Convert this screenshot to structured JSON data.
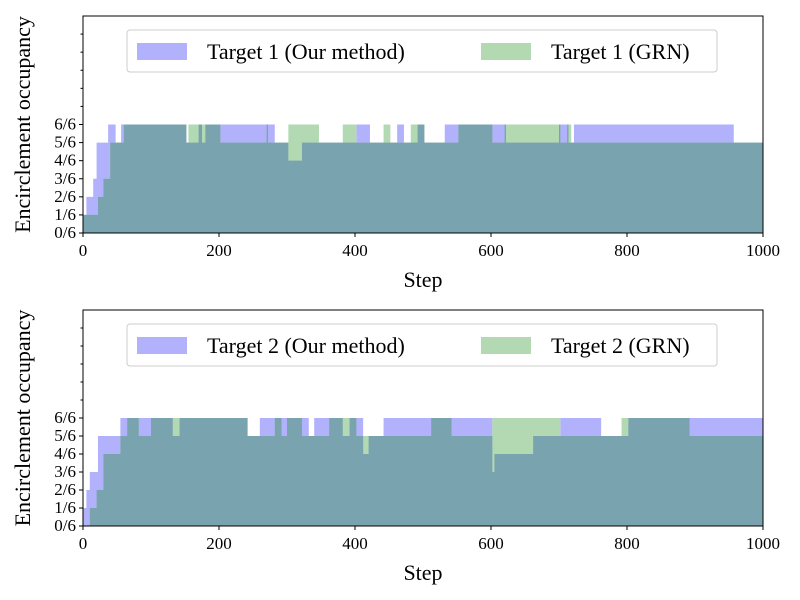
{
  "chart_data": [
    {
      "type": "area",
      "xlabel": "Step",
      "ylabel": "Encirclement occupancy",
      "xlim": [
        0,
        1000
      ],
      "ylim": [
        0,
        12
      ],
      "x_ticks": [
        "0",
        "200",
        "400",
        "600",
        "800",
        "1000"
      ],
      "y_ticks": [
        "0/6",
        "1/6",
        "2/6",
        "3/6",
        "4/6",
        "5/6",
        "6/6"
      ],
      "legend_placement": "top-center",
      "grid": false,
      "series": [
        {
          "name": "Target 1 (Our method)",
          "color": "#b2b2fc",
          "points": [
            [
              0,
              1
            ],
            [
              5,
              2
            ],
            [
              10,
              2
            ],
            [
              15,
              3
            ],
            [
              20,
              5
            ],
            [
              35,
              5
            ],
            [
              37,
              6
            ],
            [
              45,
              6
            ],
            [
              48,
              5
            ],
            [
              55,
              5
            ],
            [
              56,
              6
            ],
            [
              150,
              6
            ],
            [
              152,
              5
            ],
            [
              170,
              6
            ],
            [
              175,
              5
            ],
            [
              180,
              6
            ],
            [
              280,
              6
            ],
            [
              282,
              5
            ],
            [
              300,
              5
            ],
            [
              302,
              4
            ],
            [
              320,
              4
            ],
            [
              322,
              5
            ],
            [
              400,
              5
            ],
            [
              402,
              6
            ],
            [
              420,
              6
            ],
            [
              422,
              5
            ],
            [
              460,
              5
            ],
            [
              462,
              6
            ],
            [
              470,
              6
            ],
            [
              472,
              5
            ],
            [
              490,
              5
            ],
            [
              492,
              6
            ],
            [
              500,
              6
            ],
            [
              502,
              5
            ],
            [
              530,
              5
            ],
            [
              532,
              6
            ],
            [
              620,
              6
            ],
            [
              622,
              5
            ],
            [
              700,
              6
            ],
            [
              712,
              6
            ],
            [
              714,
              5
            ],
            [
              720,
              5
            ],
            [
              722,
              6
            ],
            [
              955,
              6
            ],
            [
              957,
              5
            ],
            [
              1000,
              5
            ]
          ]
        },
        {
          "name": "Target 1 (GRN)",
          "color": "#b3d9b3",
          "points": [
            [
              0,
              1
            ],
            [
              20,
              1
            ],
            [
              22,
              2
            ],
            [
              30,
              3
            ],
            [
              40,
              5
            ],
            [
              60,
              6
            ],
            [
              150,
              6
            ],
            [
              152,
              5
            ],
            [
              155,
              6
            ],
            [
              200,
              6
            ],
            [
              202,
              5
            ],
            [
              270,
              6
            ],
            [
              272,
              5
            ],
            [
              300,
              5
            ],
            [
              302,
              6
            ],
            [
              345,
              6
            ],
            [
              347,
              5
            ],
            [
              380,
              5
            ],
            [
              382,
              6
            ],
            [
              400,
              6
            ],
            [
              402,
              5
            ],
            [
              440,
              5
            ],
            [
              442,
              6
            ],
            [
              450,
              6
            ],
            [
              452,
              5
            ],
            [
              480,
              5
            ],
            [
              482,
              6
            ],
            [
              500,
              6
            ],
            [
              502,
              5
            ],
            [
              550,
              5
            ],
            [
              552,
              6
            ],
            [
              600,
              6
            ],
            [
              602,
              5
            ],
            [
              620,
              6
            ],
            [
              700,
              6
            ],
            [
              702,
              5
            ],
            [
              710,
              5
            ],
            [
              712,
              6
            ],
            [
              716,
              6
            ],
            [
              718,
              5
            ],
            [
              1000,
              5
            ]
          ]
        }
      ],
      "overlap_color": "#7aa3b0"
    },
    {
      "type": "area",
      "xlabel": "Step",
      "ylabel": "Encirclement occupancy",
      "xlim": [
        0,
        1000
      ],
      "ylim": [
        0,
        12
      ],
      "x_ticks": [
        "0",
        "200",
        "400",
        "600",
        "800",
        "1000"
      ],
      "y_ticks": [
        "0/6",
        "1/6",
        "2/6",
        "3/6",
        "4/6",
        "5/6",
        "6/6"
      ],
      "legend_placement": "top-center",
      "grid": false,
      "series": [
        {
          "name": "Target 2 (Our method)",
          "color": "#b2b2fc",
          "points": [
            [
              0,
              1
            ],
            [
              5,
              2
            ],
            [
              10,
              3
            ],
            [
              20,
              3
            ],
            [
              22,
              5
            ],
            [
              50,
              5
            ],
            [
              55,
              6
            ],
            [
              130,
              6
            ],
            [
              132,
              5
            ],
            [
              140,
              5
            ],
            [
              142,
              6
            ],
            [
              240,
              6
            ],
            [
              242,
              5
            ],
            [
              260,
              6
            ],
            [
              330,
              6
            ],
            [
              332,
              5
            ],
            [
              340,
              6
            ],
            [
              380,
              6
            ],
            [
              382,
              5
            ],
            [
              390,
              5
            ],
            [
              392,
              6
            ],
            [
              410,
              6
            ],
            [
              412,
              4
            ],
            [
              420,
              5
            ],
            [
              440,
              5
            ],
            [
              442,
              6
            ],
            [
              560,
              6
            ],
            [
              600,
              6
            ],
            [
              602,
              3
            ],
            [
              605,
              4
            ],
            [
              660,
              4
            ],
            [
              662,
              5
            ],
            [
              700,
              5
            ],
            [
              702,
              6
            ],
            [
              760,
              6
            ],
            [
              762,
              5
            ],
            [
              800,
              5
            ],
            [
              802,
              6
            ],
            [
              1000,
              6
            ]
          ]
        },
        {
          "name": "Target 2 (GRN)",
          "color": "#b3d9b3",
          "points": [
            [
              0,
              0
            ],
            [
              10,
              1
            ],
            [
              20,
              2
            ],
            [
              30,
              4
            ],
            [
              40,
              4
            ],
            [
              55,
              5
            ],
            [
              65,
              6
            ],
            [
              80,
              6
            ],
            [
              82,
              5
            ],
            [
              100,
              6
            ],
            [
              240,
              6
            ],
            [
              242,
              5
            ],
            [
              280,
              5
            ],
            [
              282,
              6
            ],
            [
              290,
              6
            ],
            [
              292,
              5
            ],
            [
              300,
              6
            ],
            [
              320,
              6
            ],
            [
              322,
              5
            ],
            [
              360,
              5
            ],
            [
              362,
              6
            ],
            [
              400,
              6
            ],
            [
              402,
              5
            ],
            [
              510,
              5
            ],
            [
              512,
              6
            ],
            [
              540,
              6
            ],
            [
              542,
              5
            ],
            [
              600,
              5
            ],
            [
              602,
              6
            ],
            [
              700,
              6
            ],
            [
              702,
              5
            ],
            [
              790,
              5
            ],
            [
              792,
              6
            ],
            [
              890,
              6
            ],
            [
              892,
              5
            ],
            [
              1000,
              5
            ]
          ]
        }
      ],
      "overlap_color": "#7aa3b0"
    }
  ]
}
